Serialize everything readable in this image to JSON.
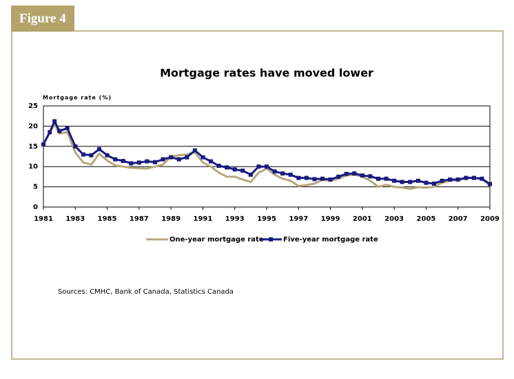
{
  "figure_label": "Figure 4",
  "sources": "Sources: CMHC, Bank of Canada, Statistics Canada",
  "chart_data": {
    "type": "line",
    "title": "Mortgage rates have moved lower",
    "y_label": "Mortgage rate (%)",
    "x": [
      1981,
      1981.4,
      1981.7,
      1982,
      1982.5,
      1983,
      1983.5,
      1984,
      1984.5,
      1985,
      1985.5,
      1986,
      1986.5,
      1987,
      1987.5,
      1988,
      1988.5,
      1989,
      1989.5,
      1990,
      1990.5,
      1991,
      1991.5,
      1992,
      1992.5,
      1993,
      1993.5,
      1994,
      1994.5,
      1995,
      1995.5,
      1996,
      1996.5,
      1997,
      1997.5,
      1998,
      1998.5,
      1999,
      1999.5,
      2000,
      2000.5,
      2001,
      2001.5,
      2002,
      2002.5,
      2003,
      2003.5,
      2004,
      2004.5,
      2005,
      2005.5,
      2006,
      2006.5,
      2007,
      2007.5,
      2008,
      2008.5,
      2009
    ],
    "series": [
      {
        "name": "One-year mortgage rate",
        "color": "#b5a77a",
        "markers": false,
        "values": [
          15.7,
          18.5,
          20.5,
          18.2,
          18.5,
          13.5,
          11,
          10.5,
          13.2,
          11.5,
          10.3,
          10,
          9.7,
          9.6,
          9.5,
          10,
          10.5,
          12.5,
          12.8,
          13,
          13.5,
          11,
          10,
          8.5,
          7.5,
          7.5,
          6.8,
          6.2,
          8.5,
          9.5,
          8,
          7,
          6.5,
          5.2,
          5.4,
          5.8,
          6.7,
          6.5,
          7,
          7.8,
          8,
          7.5,
          6.5,
          5,
          5.5,
          5,
          4.8,
          4.5,
          4.9,
          4.8,
          5,
          6,
          6.5,
          6.6,
          7.2,
          7.2,
          7,
          5.3
        ]
      },
      {
        "name": "Five-year mortgage rate",
        "color": "#1a1a80",
        "markers": true,
        "values": [
          15.5,
          18.5,
          21.2,
          18.8,
          19.5,
          15,
          13,
          12.8,
          14.3,
          12.8,
          11.8,
          11.4,
          10.8,
          11,
          11.3,
          11.1,
          11.8,
          12.3,
          11.8,
          12.3,
          14,
          12.3,
          11.3,
          10.2,
          9.8,
          9.3,
          9,
          8,
          10,
          10,
          8.8,
          8.3,
          8,
          7.2,
          7.2,
          6.9,
          7,
          6.8,
          7.5,
          8.2,
          8.3,
          7.8,
          7.6,
          7,
          7,
          6.5,
          6.2,
          6.2,
          6.5,
          6,
          5.8,
          6.5,
          6.8,
          6.8,
          7.2,
          7.2,
          7,
          5.7
        ]
      }
    ],
    "xlim": [
      1981,
      2009
    ],
    "ylim": [
      0,
      25
    ],
    "xticks": [
      1981,
      1983,
      1985,
      1987,
      1989,
      1991,
      1993,
      1995,
      1997,
      1999,
      2001,
      2003,
      2005,
      2007,
      2009
    ],
    "yticks": [
      0,
      5,
      10,
      15,
      20,
      25
    ],
    "grid": true,
    "legend": "bottom"
  }
}
